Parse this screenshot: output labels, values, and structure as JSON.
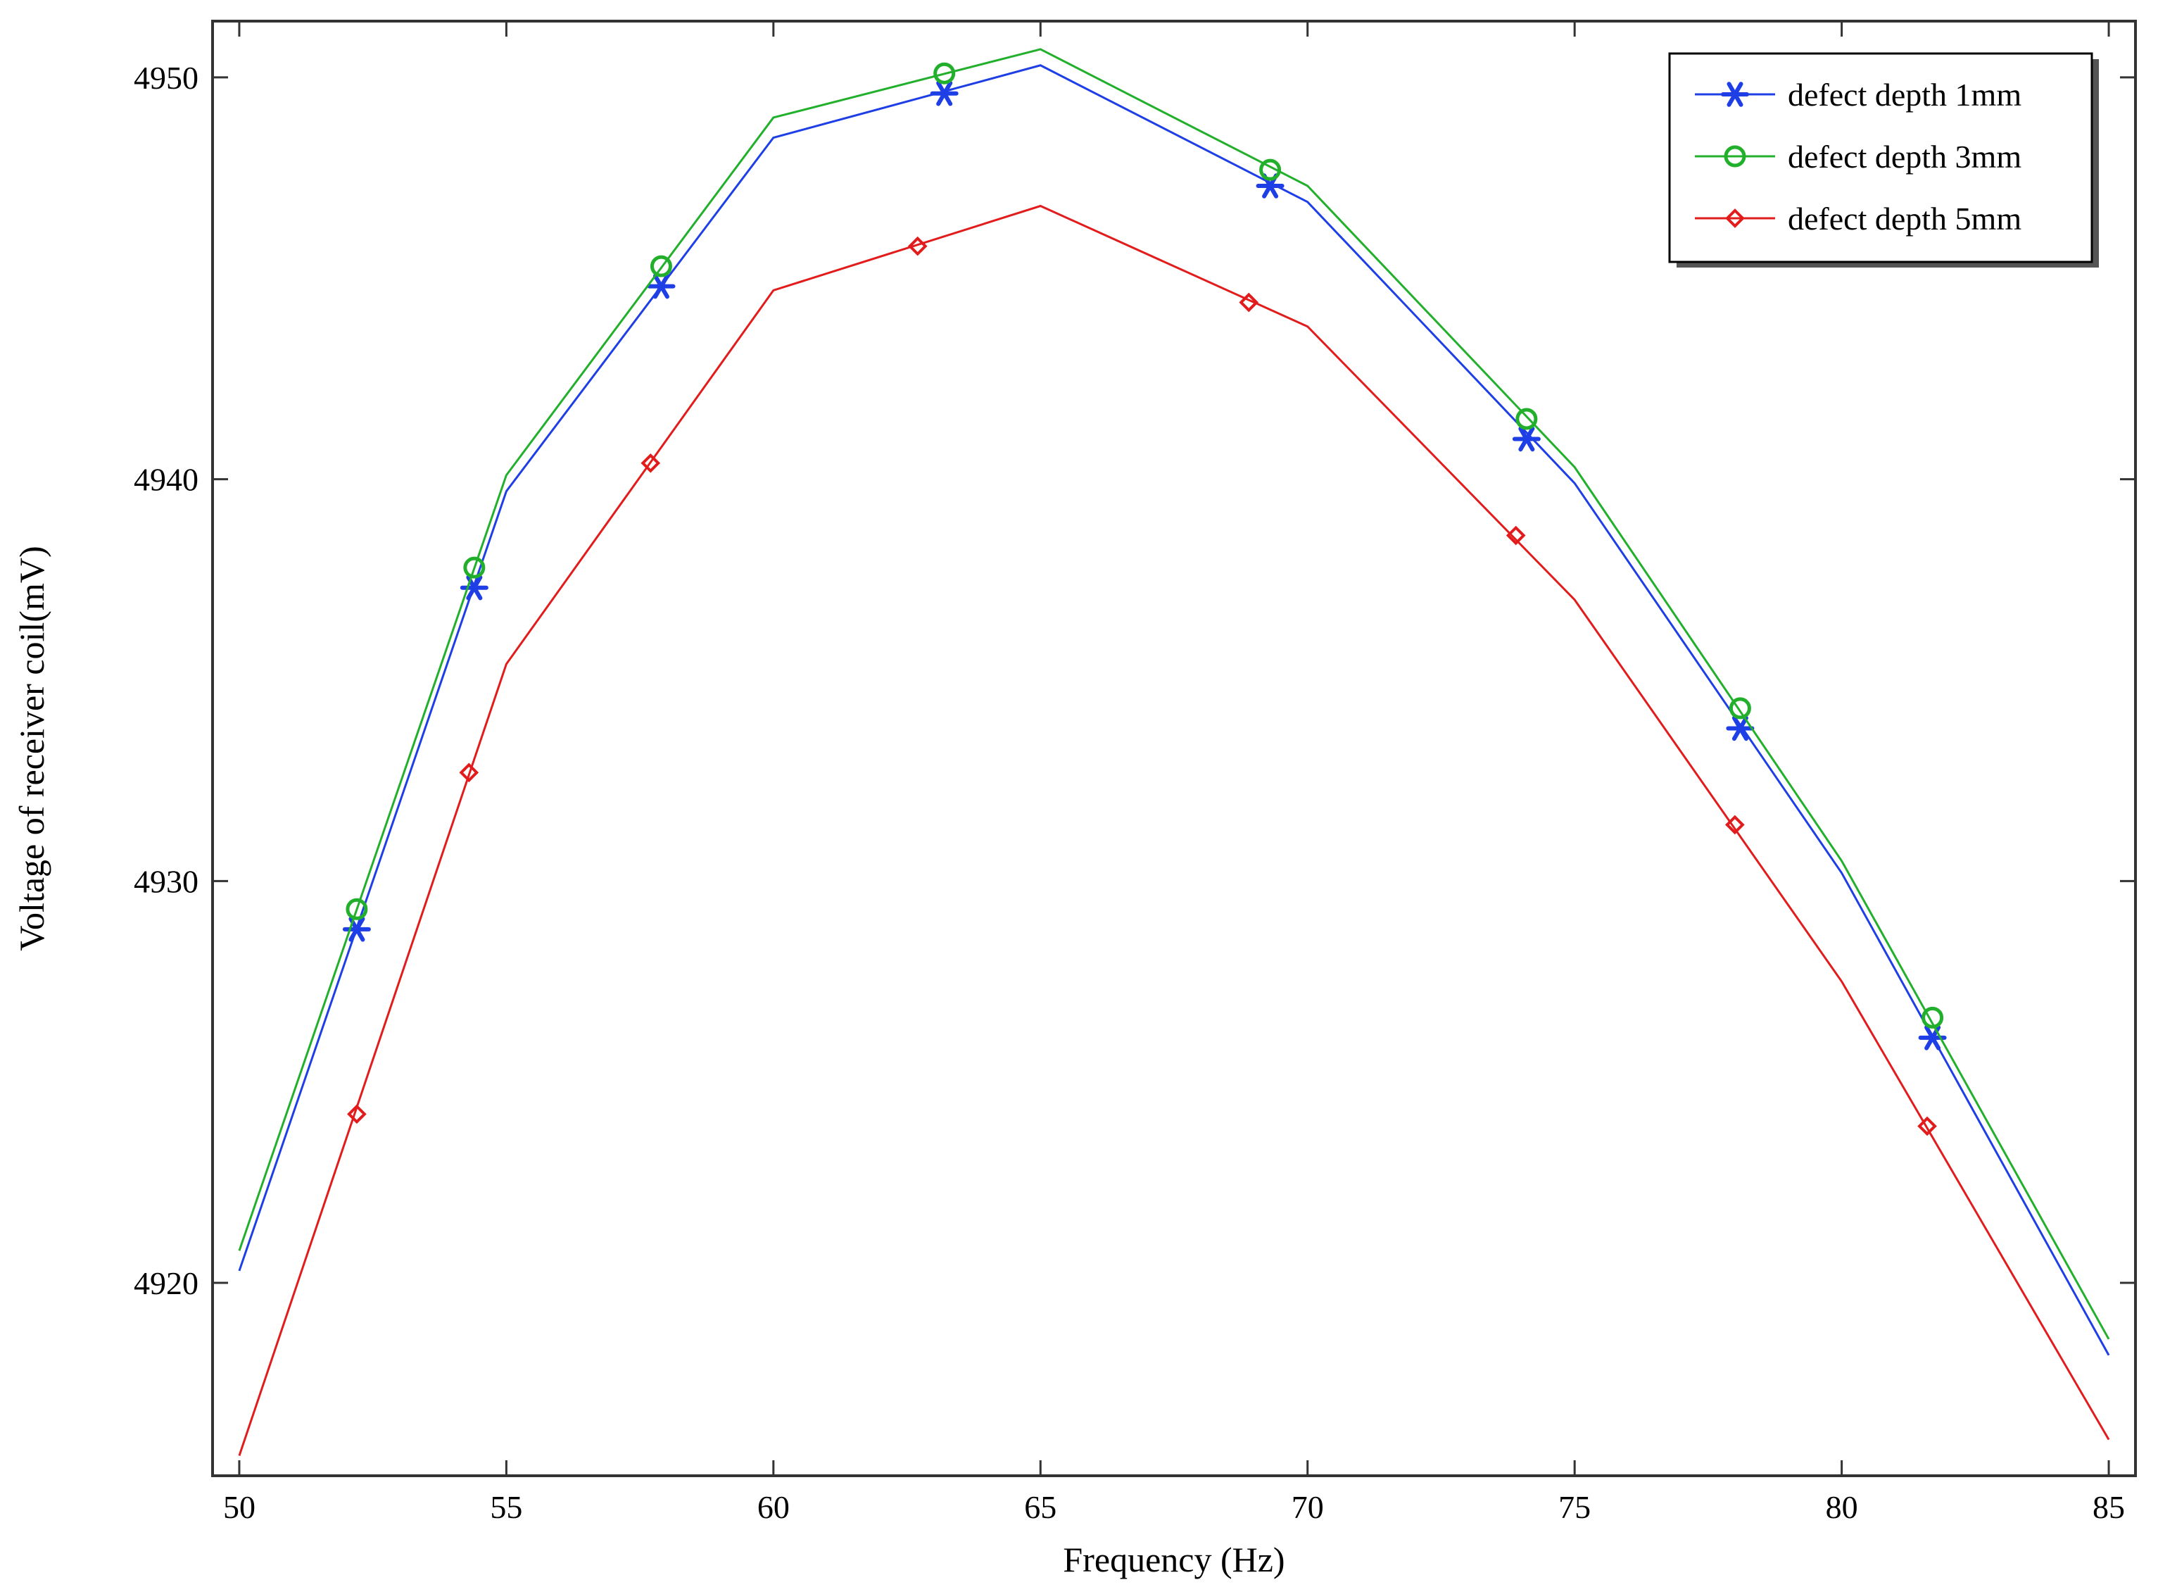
{
  "chart_data": {
    "type": "line",
    "title": "",
    "xlabel": "Frequency (Hz)",
    "ylabel": "Voltage of receiver coil(mV)",
    "xlim": [
      49.5,
      85.5
    ],
    "ylim": [
      4915.2,
      4951.4
    ],
    "xticks": [
      50,
      55,
      60,
      65,
      70,
      75,
      80,
      85
    ],
    "yticks": [
      4920,
      4930,
      4940,
      4950
    ],
    "legend_position": "top-right",
    "series": [
      {
        "name": "defect depth 1mm",
        "color": "#1f3fe6",
        "marker": "asterisk",
        "x": [
          50,
          55,
          60,
          65,
          70,
          75,
          80,
          85
        ],
        "y": [
          4920.3,
          4939.7,
          4948.5,
          4950.3,
          4946.9,
          4939.9,
          4930.2,
          4918.2
        ],
        "marker_x": [
          52.2,
          54.4,
          57.9,
          63.2,
          69.3,
          74.1,
          78.1,
          81.7
        ],
        "marker_y": [
          4928.8,
          4937.3,
          4944.8,
          4949.6,
          4947.3,
          4941.0,
          4933.8,
          4926.1
        ]
      },
      {
        "name": "defect depth 3mm",
        "color": "#22b02c",
        "marker": "circle",
        "x": [
          50,
          55,
          60,
          65,
          70,
          75,
          80,
          85
        ],
        "y": [
          4920.8,
          4940.1,
          4949.0,
          4950.7,
          4947.3,
          4940.3,
          4930.5,
          4918.6
        ],
        "marker_x": [
          52.2,
          54.4,
          57.9,
          63.2,
          69.3,
          74.1,
          78.1,
          81.7
        ],
        "marker_y": [
          4929.3,
          4937.8,
          4945.3,
          4950.1,
          4947.7,
          4941.5,
          4934.3,
          4926.6
        ]
      },
      {
        "name": "defect depth 5mm",
        "color": "#e21c1c",
        "marker": "diamond",
        "x": [
          50,
          55,
          60,
          65,
          70,
          75,
          80,
          85
        ],
        "y": [
          4915.7,
          4935.4,
          4944.7,
          4946.8,
          4943.8,
          4937.0,
          4927.5,
          4916.1
        ],
        "marker_x": [
          52.2,
          54.3,
          57.7,
          62.7,
          68.9,
          73.9,
          78.0,
          81.6
        ],
        "marker_y": [
          4924.2,
          4932.7,
          4940.4,
          4945.8,
          4944.4,
          4938.6,
          4931.4,
          4923.9
        ]
      }
    ]
  }
}
